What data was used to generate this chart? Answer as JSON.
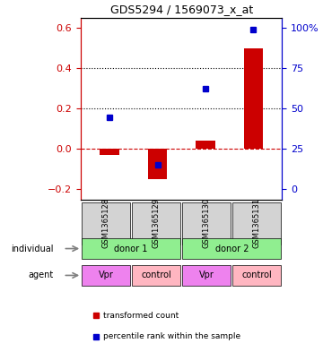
{
  "title": "GDS5294 / 1569073_x_at",
  "samples": [
    "GSM1365128",
    "GSM1365129",
    "GSM1365130",
    "GSM1365131"
  ],
  "red_values": [
    -0.03,
    -0.15,
    0.04,
    0.5
  ],
  "blue_values": [
    0.155,
    -0.08,
    0.3,
    0.59
  ],
  "red_ylim": [
    -0.25,
    0.65
  ],
  "blue_ylim_ticks": [
    0,
    25,
    50,
    75,
    100
  ],
  "red_yticks": [
    -0.2,
    0.0,
    0.2,
    0.4,
    0.6
  ],
  "dotted_lines": [
    0.2,
    0.4
  ],
  "dashed_zero": 0.0,
  "bar_width": 0.4,
  "individual_labels": [
    "donor 1",
    "donor 2"
  ],
  "agent_labels": [
    "Vpr",
    "control",
    "Vpr",
    "control"
  ],
  "individual_color": "#90EE90",
  "agent_vpr_color": "#EE82EE",
  "agent_control_color": "#FFB6C1",
  "sample_box_color": "#D3D3D3",
  "red_color": "#CC0000",
  "blue_color": "#0000CC",
  "legend_red": "transformed count",
  "legend_blue": "percentile rank within the sample"
}
